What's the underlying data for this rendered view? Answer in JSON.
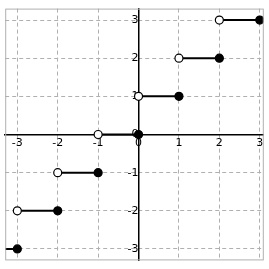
{
  "chart_data": {
    "type": "step",
    "color": "#000000",
    "marker": "circle",
    "grid": true,
    "steps": [
      {
        "from": -4,
        "to": -3,
        "value": -3
      },
      {
        "from": -3,
        "to": -2,
        "value": -2
      },
      {
        "from": -2,
        "to": -1,
        "value": -1
      },
      {
        "from": -1,
        "to": 0,
        "value": 0
      },
      {
        "from": 0,
        "to": 1,
        "value": 1
      },
      {
        "from": 1,
        "to": 2,
        "value": 2
      },
      {
        "from": 2,
        "to": 3,
        "value": 3
      }
    ],
    "xlim": [
      -3.3,
      3.1
    ],
    "ylim": [
      -3.3,
      3.3
    ],
    "xticks": [
      -3,
      -2,
      -1,
      0,
      1,
      2,
      3
    ],
    "yticks": [
      -3,
      -2,
      -1,
      0,
      1,
      2,
      3
    ]
  }
}
